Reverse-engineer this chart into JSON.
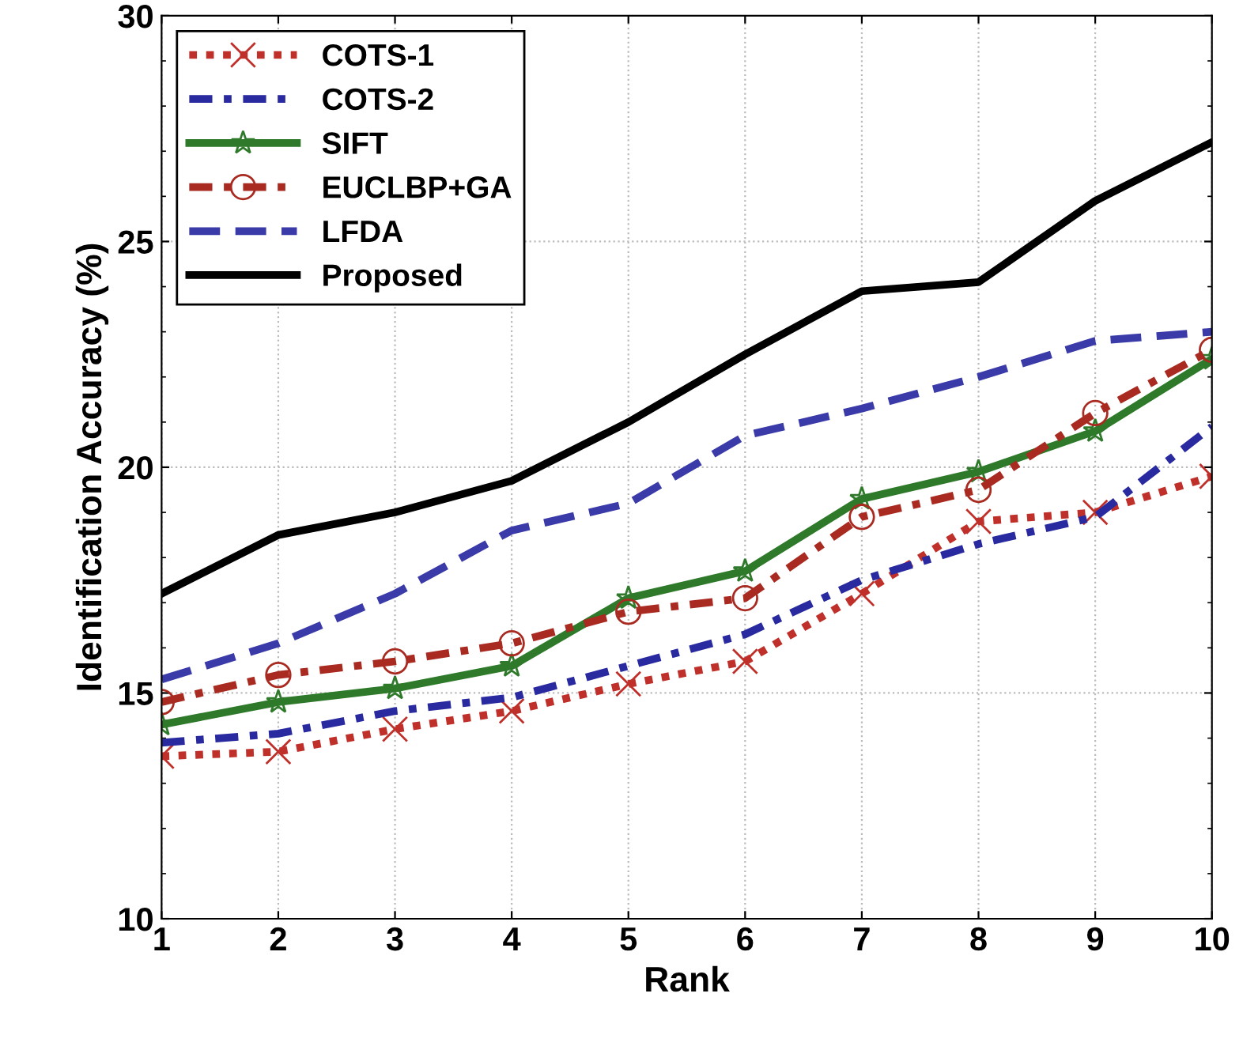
{
  "chart_data": {
    "type": "line",
    "xlabel": "Rank",
    "ylabel": "Identification Accuracy (%)",
    "x": [
      1,
      2,
      3,
      4,
      5,
      6,
      7,
      8,
      9,
      10
    ],
    "xlim": [
      1,
      10
    ],
    "xticks": [
      1,
      2,
      3,
      4,
      5,
      6,
      7,
      8,
      9,
      10
    ],
    "ylim": [
      10,
      30
    ],
    "yticks": [
      10,
      15,
      20,
      25,
      30
    ],
    "grid": true,
    "legend": "top left",
    "series": [
      {
        "name": "COTS-1",
        "color": "#c0302a",
        "line_style": "dotted",
        "marker": "cross",
        "values": [
          13.6,
          13.7,
          14.2,
          14.6,
          15.2,
          15.7,
          17.2,
          18.8,
          19.0,
          19.8
        ]
      },
      {
        "name": "COTS-2",
        "color": "#2a2aa0",
        "line_style": "dashdot",
        "marker": "none",
        "values": [
          13.9,
          14.1,
          14.6,
          14.9,
          15.6,
          16.3,
          17.5,
          18.3,
          18.9,
          20.9
        ]
      },
      {
        "name": "SIFT",
        "color": "#2e7a2a",
        "line_style": "solid",
        "marker": "star",
        "values": [
          14.3,
          14.8,
          15.1,
          15.6,
          17.1,
          17.7,
          19.3,
          19.9,
          20.8,
          22.4
        ]
      },
      {
        "name": "EUCLBP+GA",
        "color": "#a82a20",
        "line_style": "dashdot",
        "marker": "circle",
        "values": [
          14.8,
          15.4,
          15.7,
          16.1,
          16.8,
          17.1,
          18.9,
          19.5,
          21.2,
          22.6
        ]
      },
      {
        "name": "LFDA",
        "color": "#3a3aa8",
        "line_style": "dashed",
        "marker": "none",
        "values": [
          15.3,
          16.1,
          17.2,
          18.6,
          19.2,
          20.7,
          21.3,
          22.0,
          22.8,
          23.0
        ]
      },
      {
        "name": "Proposed",
        "color": "#000000",
        "line_style": "solid",
        "marker": "none",
        "values": [
          17.2,
          18.5,
          19.0,
          19.7,
          21.0,
          22.5,
          23.9,
          24.1,
          25.9,
          27.2
        ]
      }
    ]
  }
}
